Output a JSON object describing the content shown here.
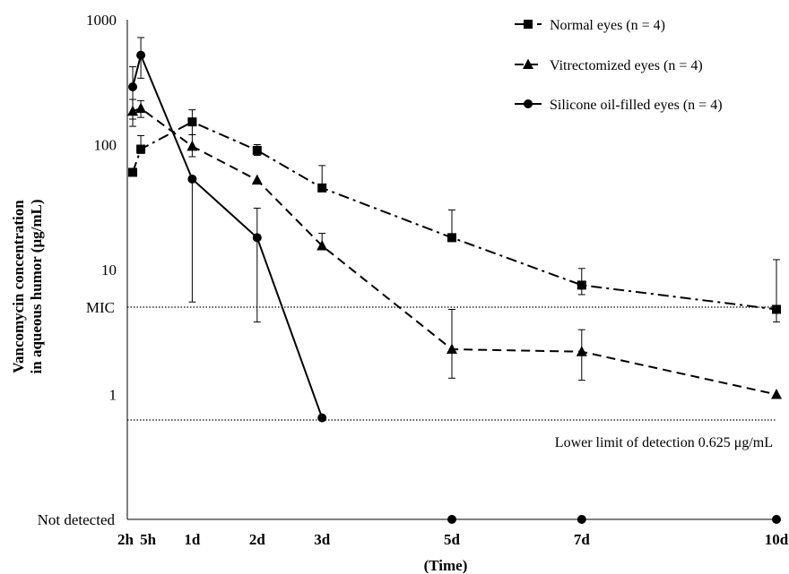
{
  "chart_data": {
    "type": "line",
    "title": "",
    "xlabel": "(Time)",
    "ylabel_line1": "Vancomycin concentration",
    "ylabel_line2": "in aqueous humor (μg/mL)",
    "y_scale": "log",
    "ylim": [
      0.1,
      1000
    ],
    "y_ticks": [
      {
        "value": 1000,
        "label": "1000"
      },
      {
        "value": 100,
        "label": "100"
      },
      {
        "value": 10,
        "label": "10"
      },
      {
        "value": 1,
        "label": "1"
      }
    ],
    "not_detected_label": "Not detected",
    "categories": [
      "2h",
      "5h",
      "1d",
      "2d",
      "3d",
      "5d",
      "7d",
      "10d"
    ],
    "x_hours": [
      2,
      5,
      24,
      48,
      72,
      120,
      168,
      240
    ],
    "xlim_hours": [
      0,
      240
    ],
    "reference_lines": [
      {
        "value": 5,
        "label": "MIC",
        "style": "dotted"
      },
      {
        "value": 0.625,
        "label": "Lower limit of detection 0.625 μg/mL",
        "style": "dotted"
      }
    ],
    "series": [
      {
        "name": "Normal eyes (n = 4)",
        "marker": "square",
        "dash": "dashdot",
        "points": [
          {
            "x": 2,
            "y": 60,
            "err_lo": 60,
            "err_hi": 60
          },
          {
            "x": 5,
            "y": 92,
            "err_lo": 85,
            "err_hi": 118
          },
          {
            "x": 24,
            "y": 152,
            "err_lo": 120,
            "err_hi": 190
          },
          {
            "x": 48,
            "y": 90,
            "err_lo": 82,
            "err_hi": 100
          },
          {
            "x": 72,
            "y": 45,
            "err_lo": 45,
            "err_hi": 68
          },
          {
            "x": 120,
            "y": 18,
            "err_lo": 18,
            "err_hi": 30
          },
          {
            "x": 168,
            "y": 7.5,
            "err_lo": 6.3,
            "err_hi": 10.2
          },
          {
            "x": 240,
            "y": 4.8,
            "err_lo": 3.8,
            "err_hi": 12
          }
        ]
      },
      {
        "name": "Vitrectomized eyes (n = 4)",
        "marker": "triangle",
        "dash": "dashed",
        "points": [
          {
            "x": 2,
            "y": 185,
            "err_lo": 140,
            "err_hi": 230
          },
          {
            "x": 5,
            "y": 195,
            "err_lo": 165,
            "err_hi": 225
          },
          {
            "x": 24,
            "y": 97,
            "err_lo": 80,
            "err_hi": 120
          },
          {
            "x": 48,
            "y": 52,
            "err_lo": 52,
            "err_hi": 52
          },
          {
            "x": 72,
            "y": 15.5,
            "err_lo": 15.5,
            "err_hi": 19.5
          },
          {
            "x": 120,
            "y": 2.3,
            "err_lo": 1.35,
            "err_hi": 4.8
          },
          {
            "x": 168,
            "y": 2.2,
            "err_lo": 1.3,
            "err_hi": 3.3
          },
          {
            "x": 240,
            "y": 1.0,
            "err_lo": 1.0,
            "err_hi": 1.0
          }
        ]
      },
      {
        "name": "Silicone oil-filled eyes (n = 4)",
        "marker": "circle",
        "dash": "solid",
        "points": [
          {
            "x": 2,
            "y": 290,
            "err_lo": 160,
            "err_hi": 420
          },
          {
            "x": 5,
            "y": 520,
            "err_lo": 340,
            "err_hi": 720
          },
          {
            "x": 24,
            "y": 53,
            "err_lo": 5.5,
            "err_hi": 53
          },
          {
            "x": 48,
            "y": 18,
            "err_lo": 3.8,
            "err_hi": 31
          },
          {
            "x": 72,
            "y": 0.65,
            "err_lo": 0.65,
            "err_hi": 0.65
          }
        ],
        "not_detected_x": [
          120,
          168,
          240
        ]
      }
    ],
    "legend_position": "top-right",
    "grid": false
  }
}
